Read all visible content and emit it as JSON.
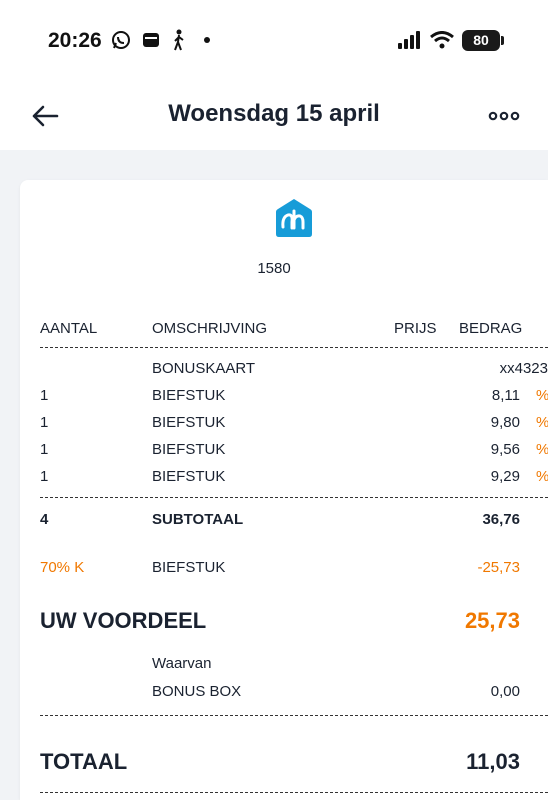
{
  "status": {
    "time": "20:26",
    "battery": "80"
  },
  "header": {
    "title": "Woensdag 15 april"
  },
  "receipt": {
    "store_number": "1580",
    "columns": {
      "aantal": "AANTAL",
      "omschrijving": "OMSCHRIJVING",
      "prijs": "PRIJS",
      "bedrag": "BEDRAG"
    },
    "bonuskaart": {
      "label": "BONUSKAART",
      "value": "xx4323"
    },
    "items": [
      {
        "qty": "1",
        "desc": "BIEFSTUK",
        "amount": "8,11",
        "marker": "%"
      },
      {
        "qty": "1",
        "desc": "BIEFSTUK",
        "amount": "9,80",
        "marker": "%"
      },
      {
        "qty": "1",
        "desc": "BIEFSTUK",
        "amount": "9,56",
        "marker": "%"
      },
      {
        "qty": "1",
        "desc": "BIEFSTUK",
        "amount": "9,29",
        "marker": "%"
      }
    ],
    "subtotal": {
      "qty": "4",
      "label": "SUBTOTAAL",
      "amount": "36,76"
    },
    "discount": {
      "code": "70% K",
      "desc": "BIEFSTUK",
      "amount": "-25,73"
    },
    "voordeel": {
      "label": "UW VOORDEEL",
      "amount": "25,73"
    },
    "waarvan": {
      "label": "Waarvan",
      "bonus_box_label": "BONUS BOX",
      "bonus_box_amount": "0,00"
    },
    "totaal": {
      "label": "TOTAAL",
      "amount": "11,03"
    }
  },
  "colors": {
    "accent_orange": "#f07800",
    "ah_blue": "#179cd8",
    "text_dark": "#1a2230"
  }
}
